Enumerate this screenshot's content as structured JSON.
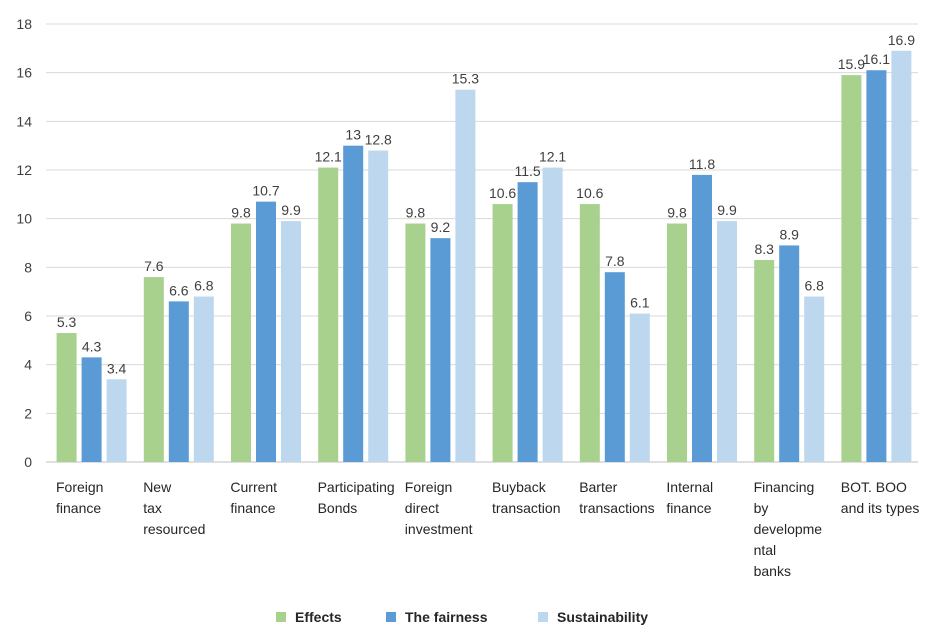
{
  "chart_data": {
    "type": "bar",
    "categories": [
      [
        "Foreign",
        "finance"
      ],
      [
        "New",
        "tax",
        "resourced"
      ],
      [
        "Current",
        "finance"
      ],
      [
        "Participating",
        "Bonds"
      ],
      [
        "Foreign",
        "direct",
        "investment"
      ],
      [
        "Buyback",
        "transaction"
      ],
      [
        "Barter",
        "transactions"
      ],
      [
        "Internal",
        "finance"
      ],
      [
        "Financing",
        "by",
        "developme",
        "ntal",
        "banks"
      ],
      [
        "BOT. BOO",
        "and its types"
      ]
    ],
    "series": [
      {
        "name": "Effects",
        "color": "#a9d18e",
        "values": [
          5.3,
          7.6,
          9.8,
          12.1,
          9.8,
          10.6,
          10.6,
          9.8,
          8.3,
          15.9
        ]
      },
      {
        "name": "The fairness",
        "color": "#5b9bd5",
        "values": [
          4.3,
          6.6,
          10.7,
          13,
          9.2,
          11.5,
          7.8,
          11.8,
          8.9,
          16.1
        ]
      },
      {
        "name": "Sustainability",
        "color": "#bdd7ee",
        "values": [
          3.4,
          6.8,
          9.9,
          12.8,
          15.3,
          12.1,
          6.1,
          9.9,
          6.8,
          16.9
        ]
      }
    ],
    "yticks": [
      "0",
      "2",
      "4",
      "6",
      "8",
      "10",
      "12",
      "14",
      "16",
      "18"
    ],
    "ylim": [
      0,
      18
    ],
    "grid": true,
    "legend_position": "bottom",
    "title": "",
    "xlabel": "",
    "ylabel": ""
  }
}
